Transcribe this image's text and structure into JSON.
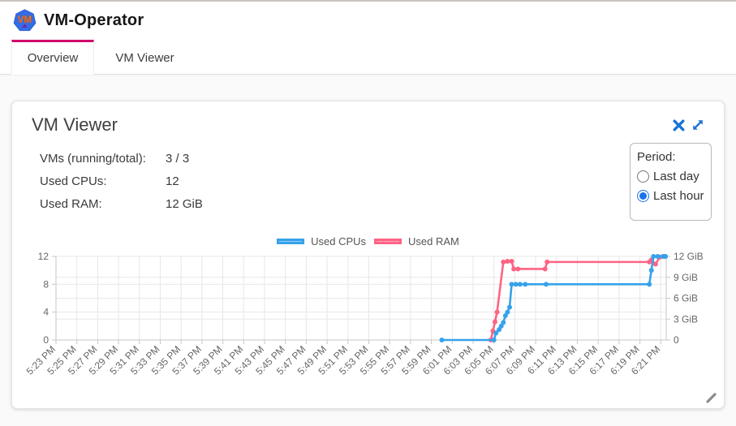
{
  "app": {
    "title": "VM-Operator",
    "logo_text": "VM"
  },
  "tabs": [
    {
      "label": "Overview",
      "active": true
    },
    {
      "label": "VM Viewer",
      "active": false
    }
  ],
  "card": {
    "title": "VM Viewer",
    "stats": [
      {
        "label": "VMs (running/total):",
        "value": "3 / 3"
      },
      {
        "label": "Used CPUs:",
        "value": "12"
      },
      {
        "label": "Used RAM:",
        "value": "12 GiB"
      }
    ],
    "period": {
      "label": "Period:",
      "options": [
        {
          "label": "Last day",
          "selected": false
        },
        {
          "label": "Last hour",
          "selected": true
        }
      ]
    }
  },
  "colors": {
    "tab_indicator": "#d0006b",
    "icon_blue": "#1b72d4",
    "cpu_line": "#36a2eb",
    "cpu_fill": "rgba(54,162,235,0.55)",
    "ram_line": "#ff6384",
    "ram_fill": "rgba(255,99,132,0.55)",
    "grid": "#e7e7e7",
    "axis_border": "#c7c7c7",
    "tick_text": "#666666"
  },
  "chart_data": {
    "type": "line",
    "title": "",
    "x_note": "x values are minutes after 5:23 PM; ticks every 2 minutes",
    "x_tick_labels": [
      "5:23 PM",
      "5:25 PM",
      "5:27 PM",
      "5:29 PM",
      "5:31 PM",
      "5:33 PM",
      "5:35 PM",
      "5:37 PM",
      "5:39 PM",
      "5:41 PM",
      "5:43 PM",
      "5:45 PM",
      "5:47 PM",
      "5:49 PM",
      "5:51 PM",
      "5:53 PM",
      "5:55 PM",
      "5:57 PM",
      "5:59 PM",
      "6:01 PM",
      "6:03 PM",
      "6:05 PM",
      "6:07 PM",
      "6:09 PM",
      "6:11 PM",
      "6:13 PM",
      "6:15 PM",
      "6:17 PM",
      "6:19 PM",
      "6:21 PM"
    ],
    "x_minutes_per_tick": 2,
    "ylim": [
      0,
      12
    ],
    "left_axis_ticks": [
      {
        "v": 0,
        "label": "0"
      },
      {
        "v": 4,
        "label": "4"
      },
      {
        "v": 8,
        "label": "8"
      },
      {
        "v": 12,
        "label": "12"
      }
    ],
    "right_axis_ticks": [
      {
        "v": 0,
        "label": "0"
      },
      {
        "v": 3,
        "label": "3 GiB"
      },
      {
        "v": 6,
        "label": "6 GiB"
      },
      {
        "v": 9,
        "label": "9 GiB"
      },
      {
        "v": 12,
        "label": "12 GiB"
      }
    ],
    "legend_position": "top",
    "grid": true,
    "series": [
      {
        "name": "Used RAM",
        "color": "#ff6384",
        "fill": "rgba(255,99,132,0.55)",
        "axis": "right",
        "unit": "GiB",
        "points": [
          [
            41.7,
            0
          ],
          [
            41.9,
            1.3
          ],
          [
            42.1,
            2.6
          ],
          [
            42.3,
            4
          ],
          [
            42.9,
            11.2
          ],
          [
            43.3,
            11.3
          ],
          [
            43.7,
            11.3
          ],
          [
            43.9,
            10.2
          ],
          [
            44.3,
            10.2
          ],
          [
            46.9,
            10.2
          ],
          [
            47.1,
            11.2
          ],
          [
            56.9,
            11.2
          ],
          [
            57.1,
            11.5
          ],
          [
            57.5,
            10.9
          ],
          [
            57.9,
            11.9
          ],
          [
            58.3,
            12
          ],
          [
            58.6,
            12
          ]
        ]
      },
      {
        "name": "Used CPUs",
        "color": "#36a2eb",
        "fill": "rgba(54,162,235,0.55)",
        "axis": "left",
        "unit": "CPUs",
        "points": [
          [
            37,
            0
          ],
          [
            42,
            0
          ],
          [
            42.2,
            1
          ],
          [
            42.5,
            1.5
          ],
          [
            42.7,
            2
          ],
          [
            42.9,
            2.5
          ],
          [
            43.1,
            3.5
          ],
          [
            43.3,
            4
          ],
          [
            43.5,
            4.7
          ],
          [
            43.7,
            8
          ],
          [
            44.1,
            8
          ],
          [
            44.5,
            8
          ],
          [
            45,
            8
          ],
          [
            47,
            8
          ],
          [
            56.9,
            8
          ],
          [
            57.1,
            10
          ],
          [
            57.3,
            12
          ],
          [
            57.7,
            12
          ],
          [
            58.2,
            12
          ],
          [
            58.6,
            12
          ]
        ]
      }
    ],
    "legend_order": [
      "Used CPUs",
      "Used RAM"
    ]
  }
}
